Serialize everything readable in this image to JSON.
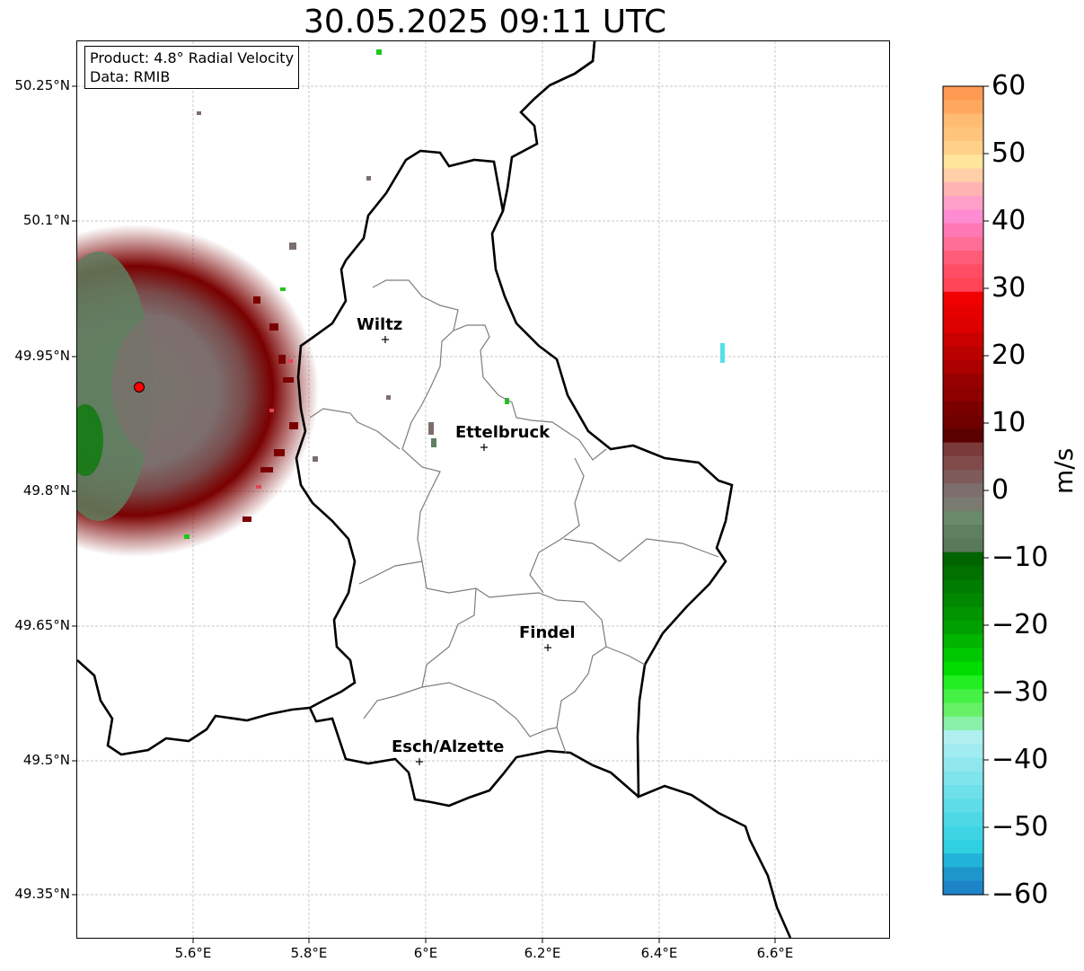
{
  "title": "30.05.2025 09:11 UTC",
  "info_box": {
    "product": "Product: 4.8° Radial Velocity",
    "data": "Data: RMIB"
  },
  "axes": {
    "lat_labels": [
      "50.25°N",
      "50.1°N",
      "49.95°N",
      "49.8°N",
      "49.65°N",
      "49.5°N",
      "49.35°N"
    ],
    "lon_labels": [
      "5.6°E",
      "5.8°E",
      "6°E",
      "6.2°E",
      "6.4°E",
      "6.6°E"
    ],
    "grid": true
  },
  "cities": [
    {
      "name": "Wiltz"
    },
    {
      "name": "Ettelbruck"
    },
    {
      "name": "Findel"
    },
    {
      "name": "Esch/Alzette"
    }
  ],
  "colorbar": {
    "unit": "m/s",
    "ticks": [
      "60",
      "50",
      "40",
      "30",
      "20",
      "10",
      "0",
      "−10",
      "−20",
      "−30",
      "−40",
      "−50",
      "−60"
    ],
    "range": [
      -60,
      60
    ]
  },
  "radar": {
    "site_color": "#ff0000",
    "positive_color": "#7a0000",
    "negative_color": "#5f7f5f"
  }
}
